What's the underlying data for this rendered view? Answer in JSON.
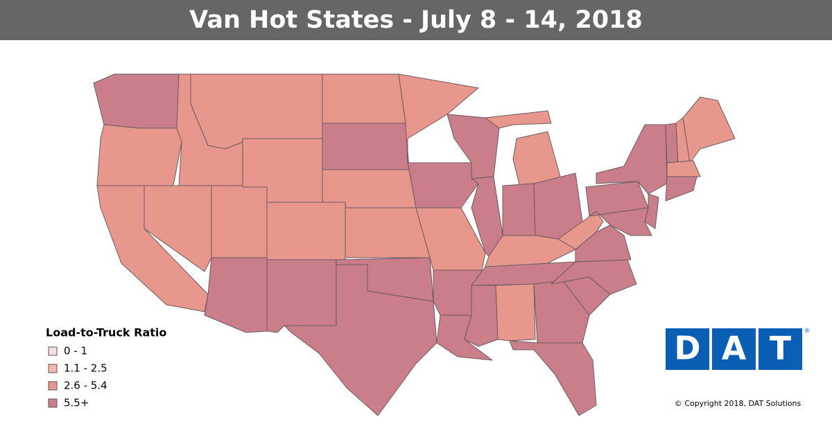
{
  "header": {
    "title": "Van Hot States - July 8 - 14, 2018"
  },
  "legend": {
    "title": "Load-to-Truck Ratio",
    "items": [
      {
        "label": "0 - 1",
        "color": "#f7dfdc"
      },
      {
        "label": "1.1 - 2.5",
        "color": "#f2b7ad"
      },
      {
        "label": "2.6 - 5.4",
        "color": "#e8978c"
      },
      {
        "label": "5.5+",
        "color": "#c97e8a"
      }
    ]
  },
  "logo": {
    "letters": [
      "D",
      "A",
      "T"
    ],
    "mark": "®",
    "color": "#0a5fb4"
  },
  "copyright": "© Copyright 2018, DAT Solutions"
}
